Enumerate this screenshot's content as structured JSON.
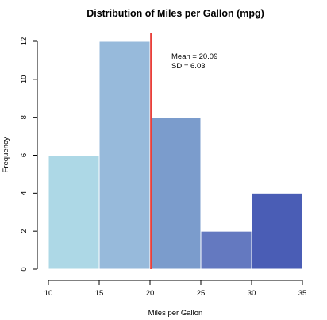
{
  "chart_data": {
    "type": "histogram",
    "title": "Distribution of Miles per Gallon (mpg)",
    "xlabel": "Miles per Gallon",
    "ylabel": "Frequency",
    "bins": [
      {
        "start": 10,
        "end": 15,
        "count": 6,
        "color": "#ADD8E6"
      },
      {
        "start": 15,
        "end": 20,
        "count": 12,
        "color": "#97BADB"
      },
      {
        "start": 20,
        "end": 25,
        "count": 8,
        "color": "#7B9CCC"
      },
      {
        "start": 25,
        "end": 30,
        "count": 2,
        "color": "#6479C0"
      },
      {
        "start": 30,
        "end": 35,
        "count": 4,
        "color": "#4A5DB5"
      }
    ],
    "x_ticks": [
      10,
      15,
      20,
      25,
      30,
      35
    ],
    "y_ticks": [
      0,
      2,
      4,
      6,
      8,
      10,
      12
    ],
    "xlim": [
      10,
      35
    ],
    "ylim": [
      0,
      12
    ],
    "mean_line": {
      "value": 20.09,
      "color": "#E8403A"
    },
    "annotations": [
      "Mean = 20.09",
      "SD = 6.03"
    ],
    "grid": false,
    "legend": "none"
  }
}
